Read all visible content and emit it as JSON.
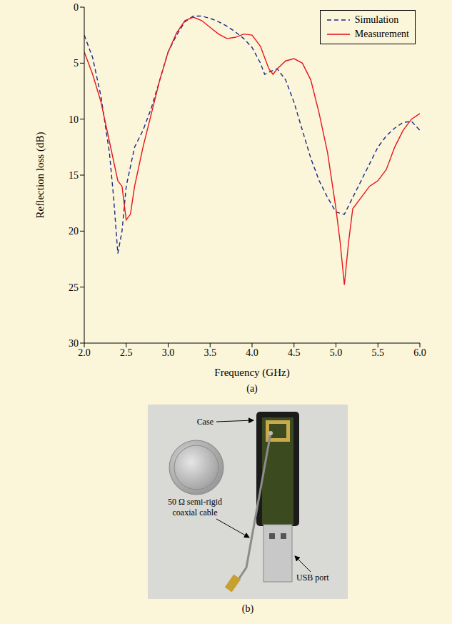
{
  "chart_data": {
    "type": "line",
    "caption": "(a)",
    "x_label": "Frequency (GHz)",
    "y_label": "Reflection loss (dB)",
    "xlim": [
      2,
      6
    ],
    "xticks": [
      {
        "value": 2,
        "label": "2.0"
      },
      {
        "value": 2.5,
        "label": "2.5"
      },
      {
        "value": 3,
        "label": "3.0"
      },
      {
        "value": 3.5,
        "label": "3.5"
      },
      {
        "value": 4,
        "label": "4.0"
      },
      {
        "value": 4.5,
        "label": "4.5"
      },
      {
        "value": 5,
        "label": "5.0"
      },
      {
        "value": 5.5,
        "label": "5.5"
      },
      {
        "value": 6,
        "label": "6.0"
      }
    ],
    "ylim": [
      30,
      0
    ],
    "yticks": [
      0,
      5,
      10,
      15,
      20,
      25,
      30
    ],
    "grid": false,
    "legend": "upper right",
    "series": [
      {
        "name": "Simulation",
        "color": "#1a2a8a",
        "line_style": "dashed",
        "x": [
          2.0,
          2.1,
          2.2,
          2.3,
          2.35,
          2.4,
          2.45,
          2.5,
          2.6,
          2.7,
          2.8,
          2.9,
          3.0,
          3.1,
          3.2,
          3.3,
          3.4,
          3.5,
          3.6,
          3.7,
          3.8,
          3.9,
          4.0,
          4.1,
          4.15,
          4.2,
          4.3,
          4.4,
          4.5,
          4.6,
          4.7,
          4.8,
          4.9,
          5.0,
          5.1,
          5.2,
          5.3,
          5.4,
          5.5,
          5.6,
          5.7,
          5.8,
          5.9,
          6.0
        ],
        "values": [
          2.5,
          4.5,
          8,
          13,
          17,
          22,
          20,
          16,
          12.5,
          11,
          9,
          6.5,
          4,
          2.5,
          1.3,
          0.8,
          0.8,
          1.0,
          1.3,
          1.7,
          2.2,
          2.8,
          3.6,
          5.0,
          6.0,
          5.8,
          5.5,
          6.5,
          8.5,
          11,
          13.5,
          15.5,
          17,
          18.3,
          18.5,
          17,
          15.5,
          14,
          12.5,
          11.5,
          10.8,
          10.3,
          10.2,
          11
        ]
      },
      {
        "name": "Measurement",
        "color": "#e8141c",
        "line_style": "solid",
        "x": [
          2.0,
          2.1,
          2.2,
          2.3,
          2.4,
          2.45,
          2.5,
          2.55,
          2.6,
          2.7,
          2.8,
          2.9,
          3.0,
          3.1,
          3.2,
          3.3,
          3.4,
          3.5,
          3.6,
          3.7,
          3.8,
          3.9,
          4.0,
          4.1,
          4.2,
          4.25,
          4.3,
          4.4,
          4.5,
          4.6,
          4.7,
          4.8,
          4.9,
          5.0,
          5.05,
          5.1,
          5.15,
          5.2,
          5.3,
          5.4,
          5.5,
          5.6,
          5.7,
          5.8,
          5.9,
          6.0
        ],
        "values": [
          4,
          6,
          8.5,
          12,
          15.5,
          16,
          19,
          18.5,
          16,
          12.5,
          9.5,
          6.5,
          4,
          2.3,
          1.2,
          0.9,
          1.2,
          1.8,
          2.4,
          2.8,
          2.7,
          2.4,
          2.5,
          3.5,
          5.5,
          6.0,
          5.5,
          4.8,
          4.6,
          5,
          6.5,
          9.5,
          13,
          18,
          21,
          24.8,
          21,
          18,
          17,
          16,
          15.5,
          14.5,
          12.5,
          11,
          10,
          9.5
        ]
      }
    ]
  },
  "photo": {
    "caption": "(b)",
    "labels": {
      "case": "Case",
      "cable": "50 Ω semi-rigid coaxial cable",
      "usb": "USB port"
    }
  }
}
